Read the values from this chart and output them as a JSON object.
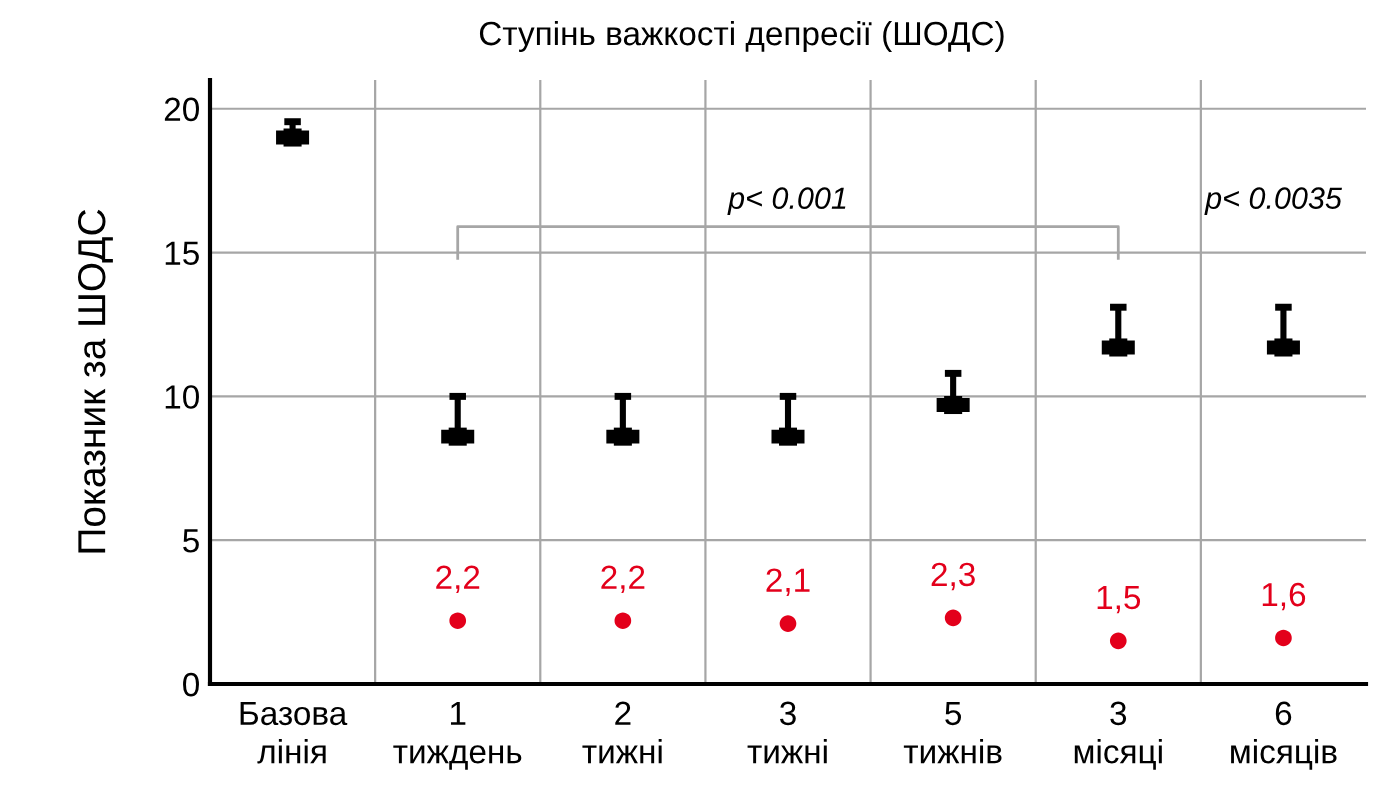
{
  "chart_data": {
    "type": "scatter",
    "title": "Ступінь важкості депресії (ШОДС)",
    "ylabel": "Показник за ШОДС",
    "categories": [
      "Базова\nлінія",
      "1\nтиждень",
      "2\nтижні",
      "3\nтижні",
      "5\nтижнів",
      "3\nмісяці",
      "6\nмісяців"
    ],
    "series": [
      {
        "color": "#000000",
        "marker": "square",
        "values": [
          19.0,
          8.6,
          8.6,
          8.6,
          9.7,
          11.7,
          11.7
        ],
        "errors": [
          [
            19.0,
            19.55
          ],
          [
            8.6,
            10.0
          ],
          [
            8.6,
            10.0
          ],
          [
            8.6,
            10.0
          ],
          [
            9.7,
            10.8
          ],
          [
            11.7,
            13.1
          ],
          [
            11.7,
            13.1
          ]
        ]
      },
      {
        "color": "#e3001b",
        "marker": "circle",
        "values": [
          null,
          2.2,
          2.2,
          2.1,
          2.3,
          1.5,
          1.6
        ],
        "value_labels": [
          null,
          "2,2",
          "2,2",
          "2,1",
          "2,3",
          "1,5",
          "1,6"
        ]
      }
    ],
    "ylim": [
      0,
      21
    ],
    "yticks": [
      0,
      5,
      10,
      15,
      20
    ],
    "grid": true,
    "annotations": [
      "p< 0.001",
      "p< 0.0035"
    ]
  }
}
